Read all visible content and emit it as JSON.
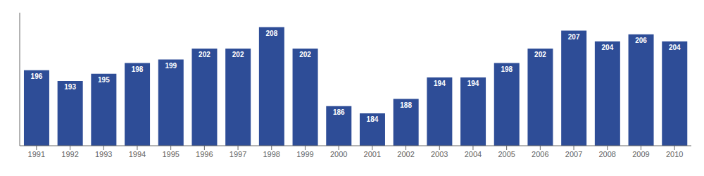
{
  "chart_data": {
    "type": "bar",
    "categories": [
      "1991",
      "1992",
      "1993",
      "1994",
      "1995",
      "1996",
      "1997",
      "1998",
      "1999",
      "2000",
      "2001",
      "2002",
      "2003",
      "2004",
      "2005",
      "2006",
      "2007",
      "2008",
      "2009",
      "2010"
    ],
    "values": [
      196,
      193,
      195,
      198,
      199,
      202,
      202,
      208,
      202,
      186,
      184,
      188,
      194,
      194,
      198,
      202,
      207,
      204,
      206,
      204
    ],
    "color": "#2e4d97",
    "ylim": [
      175,
      212
    ],
    "data_labels": true,
    "tick_labels": "x"
  }
}
